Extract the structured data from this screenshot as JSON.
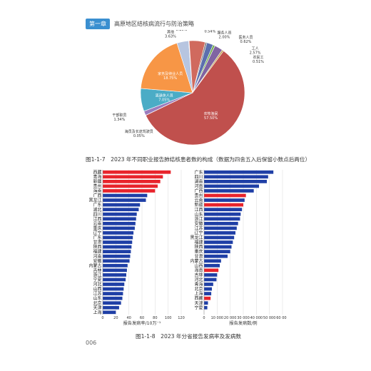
{
  "header": {
    "chapter_tag": "第一章",
    "title": "高原地区结核病流行与防治策略"
  },
  "fig1_caption": "图1-1-7　2023 年不同职业报告肺结核患者数的构成（数据为四舍五入后保留小数点后两位）",
  "fig2_caption": "图1-1-8　2023 年分省报告发病率及发病数",
  "page_number": "006",
  "colors": {
    "bar_blue": "#1f3fa6",
    "bar_red": "#e8242c"
  },
  "pie": {
    "slices": [
      {
        "name": "教师",
        "pct": "0.54%",
        "value": 0.54,
        "color": "#7f7f7f"
      },
      {
        "name": "服务人员",
        "pct": "2.00%",
        "value": 2.0,
        "color": "#5b6fae"
      },
      {
        "name": "医务人员",
        "pct": "0.62%",
        "value": 0.62,
        "color": "#70ad47"
      },
      {
        "name": "工人",
        "pct": "2.57%",
        "value": 2.57,
        "color": "#8064a2"
      },
      {
        "name": "农民工",
        "pct": "0.51%",
        "value": 0.51,
        "color": "#c0a050"
      },
      {
        "name": "农牧渔民",
        "pct": "57.50%",
        "value": 57.5,
        "color": "#c0504d"
      },
      {
        "name": "海员及长途驾驶员",
        "pct": "0.05%",
        "value": 0.05,
        "color": "#4f81bd"
      },
      {
        "name": "干部职员",
        "pct": "1.34%",
        "value": 1.34,
        "color": "#9b7cbd"
      },
      {
        "name": "离退休人员",
        "pct": "7.05%",
        "value": 7.05,
        "color": "#4bacc6"
      },
      {
        "name": "家务及待业人员",
        "pct": "18.75%",
        "value": 18.75,
        "color": "#f79646"
      },
      {
        "name": "其他",
        "pct": "3.63%",
        "value": 3.63,
        "color": "#b7c5e0"
      },
      {
        "name": "学龄前儿童",
        "pct": "0.16%",
        "value": 0.16,
        "color": "#d9d9d9"
      },
      {
        "name": "学生",
        "pct": "4.94%",
        "value": 4.94,
        "color": "#d06a5e"
      }
    ]
  },
  "chart_data": [
    {
      "type": "bar",
      "orientation": "horizontal",
      "xlabel": "报告发病率/10万⁻¹",
      "xlim": [
        0,
        120
      ],
      "xticks": [
        "0",
        "20",
        "40",
        "60",
        "80",
        "100",
        "120"
      ],
      "categories": [
        "西藏",
        "青海",
        "新疆",
        "贵州",
        "海南",
        "广西",
        "黑龙江",
        "广东",
        "湖北",
        "四川",
        "江西",
        "云南",
        "重庆",
        "辽宁",
        "广东",
        "甘肃",
        "陕西",
        "福建",
        "河南",
        "安徽",
        "内蒙古",
        "吉林",
        "浙江",
        "宁夏",
        "河北",
        "山西",
        "江苏",
        "山东",
        "北京",
        "天津",
        "上海"
      ],
      "values": [
        104,
        92,
        88,
        84,
        80,
        68,
        66,
        57,
        55,
        52,
        51,
        50,
        49,
        47,
        46,
        45,
        44,
        43,
        42,
        41,
        38,
        37,
        36,
        35,
        33,
        32,
        31,
        30,
        28,
        25,
        20
      ],
      "highlight": [
        0,
        1,
        2,
        3,
        4
      ]
    },
    {
      "type": "bar",
      "orientation": "horizontal",
      "xlabel": "报告发病数/例",
      "xlim": [
        0,
        60000
      ],
      "xticks": [
        "0",
        "10 000",
        "20 000",
        "30 000",
        "40 000",
        "50 000",
        "60 000"
      ],
      "categories": [
        "广东",
        "四川",
        "湖南",
        "河南",
        "广西",
        "贵州",
        "云南",
        "新疆",
        "江西",
        "山东",
        "浙江",
        "安徽",
        "江苏",
        "辽宁",
        "黑龙江",
        "福建",
        "陕西",
        "重庆",
        "甘肃",
        "内蒙古",
        "山西",
        "海南",
        "吉林",
        "河北",
        "青海",
        "北京",
        "上海",
        "西藏",
        "天津",
        "宁夏"
      ],
      "values": [
        53000,
        49000,
        48000,
        42000,
        38000,
        32000,
        31000,
        30000,
        29000,
        28000,
        27500,
        26000,
        25000,
        24000,
        23000,
        22000,
        21000,
        20000,
        18000,
        13000,
        12000,
        11000,
        10000,
        9500,
        7000,
        6000,
        5500,
        5000,
        3000,
        2500
      ],
      "highlight": [
        5,
        7,
        21,
        27
      ]
    }
  ]
}
